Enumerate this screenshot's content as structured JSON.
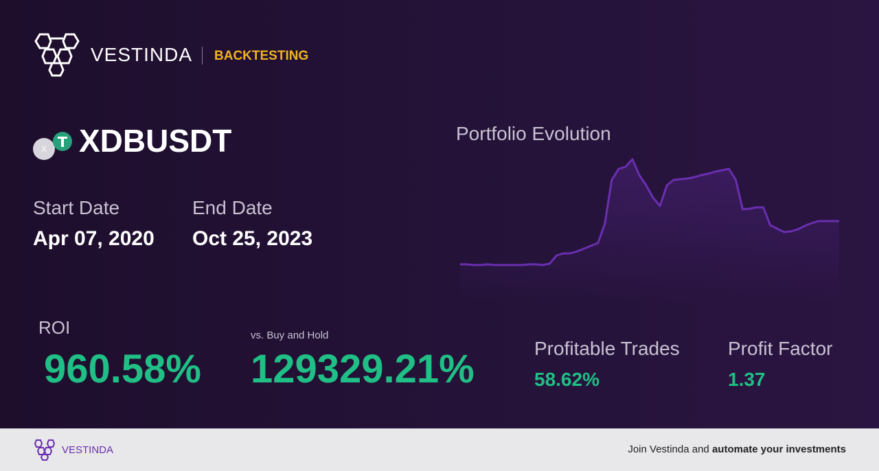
{
  "header": {
    "brand": "VESTINDA",
    "section": "BACKTESTING"
  },
  "pair": {
    "icon_label": "X",
    "symbol": "XDBUSDT"
  },
  "dates": {
    "start_label": "Start Date",
    "start": "Apr 07, 2020",
    "end_label": "End Date",
    "end": "Oct 25, 2023"
  },
  "chart_data": {
    "type": "line",
    "title": "Portfolio Evolution",
    "color": "#6a2fb0",
    "values": [
      15,
      15,
      14,
      14,
      15,
      14,
      14,
      14,
      14,
      14,
      15,
      15,
      14,
      16,
      28,
      31,
      31,
      34,
      38,
      42,
      46,
      74,
      138,
      154,
      157,
      168,
      145,
      130,
      112,
      100,
      130,
      138,
      139,
      140,
      142,
      145,
      147,
      150,
      152,
      154,
      138,
      95,
      96,
      98,
      98,
      72,
      67,
      62,
      63,
      66,
      71,
      75,
      78,
      78,
      78,
      78
    ]
  },
  "stats": {
    "roi_label": "ROI",
    "roi": "960.58%",
    "bh_label": "vs. Buy and Hold",
    "bh": "129329.21%",
    "profitable_label": "Profitable Trades",
    "profitable": "58.62%",
    "factor_label": "Profit Factor",
    "factor": "1.37"
  },
  "footer": {
    "brand": "VESTINDA",
    "cta_plain": "Join Vestinda and ",
    "cta_bold": "automate your investments"
  }
}
